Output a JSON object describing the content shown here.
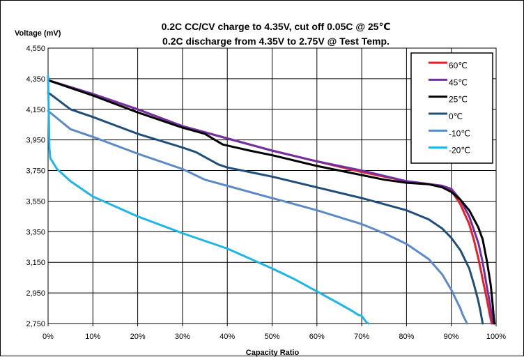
{
  "chart_data": {
    "type": "line",
    "title_lines": [
      "0.2C CC/CV charge to 4.35V, cut off 0.05C @ 25℃",
      "0.2C discharge from 4.35V to 2.75V @ Test Temp."
    ],
    "ylabel": "Voltage (mV)",
    "xlabel": "Capacity Ratio",
    "ylim": [
      2750,
      4550
    ],
    "xlim": [
      0,
      100
    ],
    "y_ticks": [
      "2,750",
      "2,950",
      "3,150",
      "3,350",
      "3,550",
      "3,750",
      "3,950",
      "4,150",
      "4,350",
      "4,550"
    ],
    "x_ticks": [
      "0%",
      "10%",
      "20%",
      "30%",
      "40%",
      "50%",
      "60%",
      "70%",
      "80%",
      "90%",
      "100%"
    ],
    "grid": true,
    "legend_position": "top-right",
    "series": [
      {
        "name": "60℃",
        "color": "#ee1c25",
        "x": [
          0,
          10,
          20,
          30,
          40,
          50,
          60,
          70,
          80,
          88,
          90,
          92,
          94,
          95,
          96,
          97,
          98,
          98.5,
          99
        ],
        "y": [
          4340,
          4250,
          4150,
          4040,
          3960,
          3880,
          3810,
          3740,
          3680,
          3650,
          3620,
          3530,
          3400,
          3300,
          3180,
          3040,
          2900,
          2820,
          2750
        ]
      },
      {
        "name": "45℃",
        "color": "#7030a0",
        "x": [
          0,
          10,
          20,
          30,
          40,
          50,
          60,
          70,
          80,
          88,
          90,
          92,
          94,
          96,
          97,
          98,
          98.5,
          99,
          99.3
        ],
        "y": [
          4340,
          4250,
          4150,
          4040,
          3960,
          3880,
          3810,
          3750,
          3680,
          3650,
          3630,
          3560,
          3450,
          3280,
          3150,
          2980,
          2900,
          2810,
          2750
        ]
      },
      {
        "name": "25℃",
        "color": "#000000",
        "x": [
          0,
          10,
          20,
          30,
          35,
          39,
          45,
          50,
          60,
          70,
          75,
          80,
          85,
          88,
          90,
          92,
          94,
          96,
          97,
          98,
          98.8,
          99.2,
          99.6
        ],
        "y": [
          4340,
          4240,
          4130,
          4030,
          3990,
          3920,
          3880,
          3850,
          3780,
          3720,
          3690,
          3670,
          3660,
          3640,
          3610,
          3560,
          3490,
          3380,
          3300,
          3150,
          3000,
          2880,
          2750
        ]
      },
      {
        "name": "0℃",
        "color": "#1f4e79",
        "x": [
          0,
          5,
          10,
          20,
          30,
          33,
          38,
          40,
          50,
          60,
          70,
          80,
          85,
          88,
          90,
          92,
          94,
          95,
          96,
          96.5,
          97
        ],
        "y": [
          4260,
          4150,
          4100,
          3990,
          3900,
          3870,
          3790,
          3770,
          3710,
          3640,
          3570,
          3490,
          3430,
          3370,
          3310,
          3230,
          3110,
          3010,
          2900,
          2830,
          2750
        ]
      },
      {
        "name": "-10℃",
        "color": "#5b8ac6",
        "x": [
          0,
          5,
          10,
          20,
          30,
          35,
          40,
          50,
          60,
          70,
          75,
          80,
          85,
          88,
          90,
          91,
          92,
          92.5,
          93,
          93.5
        ],
        "y": [
          4140,
          4020,
          3970,
          3860,
          3760,
          3690,
          3650,
          3570,
          3490,
          3400,
          3340,
          3270,
          3170,
          3070,
          2970,
          2910,
          2850,
          2810,
          2780,
          2750
        ]
      },
      {
        "name": "-20℃",
        "color": "#1eb5ea",
        "x": [
          0,
          0.3,
          0.5,
          2,
          5,
          10,
          20,
          30,
          40,
          50,
          55,
          60,
          65,
          68,
          69,
          70,
          70.5,
          71,
          71.5
        ],
        "y": [
          4370,
          3900,
          3830,
          3760,
          3680,
          3580,
          3450,
          3340,
          3240,
          3110,
          3040,
          2960,
          2880,
          2830,
          2810,
          2800,
          2780,
          2760,
          2750
        ]
      }
    ]
  }
}
